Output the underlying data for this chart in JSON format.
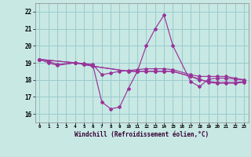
{
  "xlabel": "Windchill (Refroidissement éolien,°C)",
  "bg_color": "#c8e8e4",
  "grid_color": "#99cccc",
  "line_color": "#993399",
  "xlim": [
    -0.5,
    23.5
  ],
  "ylim": [
    15.5,
    22.5
  ],
  "xticks": [
    0,
    1,
    2,
    3,
    4,
    5,
    6,
    7,
    8,
    9,
    10,
    11,
    12,
    13,
    14,
    15,
    16,
    17,
    18,
    19,
    20,
    21,
    22,
    23
  ],
  "yticks": [
    16,
    17,
    18,
    19,
    20,
    21,
    22
  ],
  "line1_x": [
    0,
    1,
    2,
    4,
    5,
    6,
    7,
    8,
    9,
    10,
    11,
    12,
    13,
    14,
    15,
    17,
    18,
    19,
    20,
    21,
    22,
    23
  ],
  "line1_y": [
    19.2,
    19.0,
    18.85,
    19.0,
    18.95,
    18.85,
    16.7,
    16.3,
    16.4,
    17.5,
    18.5,
    20.0,
    21.0,
    21.8,
    20.0,
    17.9,
    17.6,
    18.05,
    18.1,
    18.1,
    18.05,
    18.0
  ],
  "line2_x": [
    0,
    1,
    2,
    4,
    5,
    6,
    7,
    8,
    9,
    10,
    11,
    12,
    13,
    14,
    15,
    17,
    18,
    19,
    20,
    21,
    22,
    23
  ],
  "line2_y": [
    19.2,
    19.1,
    18.9,
    19.0,
    18.95,
    18.9,
    18.3,
    18.4,
    18.5,
    18.55,
    18.6,
    18.65,
    18.65,
    18.65,
    18.6,
    18.3,
    18.2,
    18.2,
    18.2,
    18.2,
    18.1,
    18.0
  ],
  "line3_x": [
    0,
    4,
    5,
    6,
    10,
    11,
    12,
    13,
    14,
    15,
    17,
    18,
    19,
    20,
    21,
    22,
    23
  ],
  "line3_y": [
    19.2,
    19.0,
    18.9,
    18.8,
    18.5,
    18.5,
    18.5,
    18.5,
    18.5,
    18.5,
    18.2,
    18.0,
    17.9,
    17.85,
    17.85,
    17.85,
    17.9
  ],
  "line4_x": [
    0,
    4,
    5,
    6,
    10,
    11,
    12,
    13,
    14,
    15,
    17,
    18,
    19,
    20,
    21,
    22,
    23
  ],
  "line4_y": [
    19.2,
    19.0,
    18.9,
    18.8,
    18.5,
    18.5,
    18.5,
    18.5,
    18.5,
    18.5,
    18.2,
    18.05,
    17.85,
    17.8,
    17.8,
    17.8,
    17.85
  ]
}
